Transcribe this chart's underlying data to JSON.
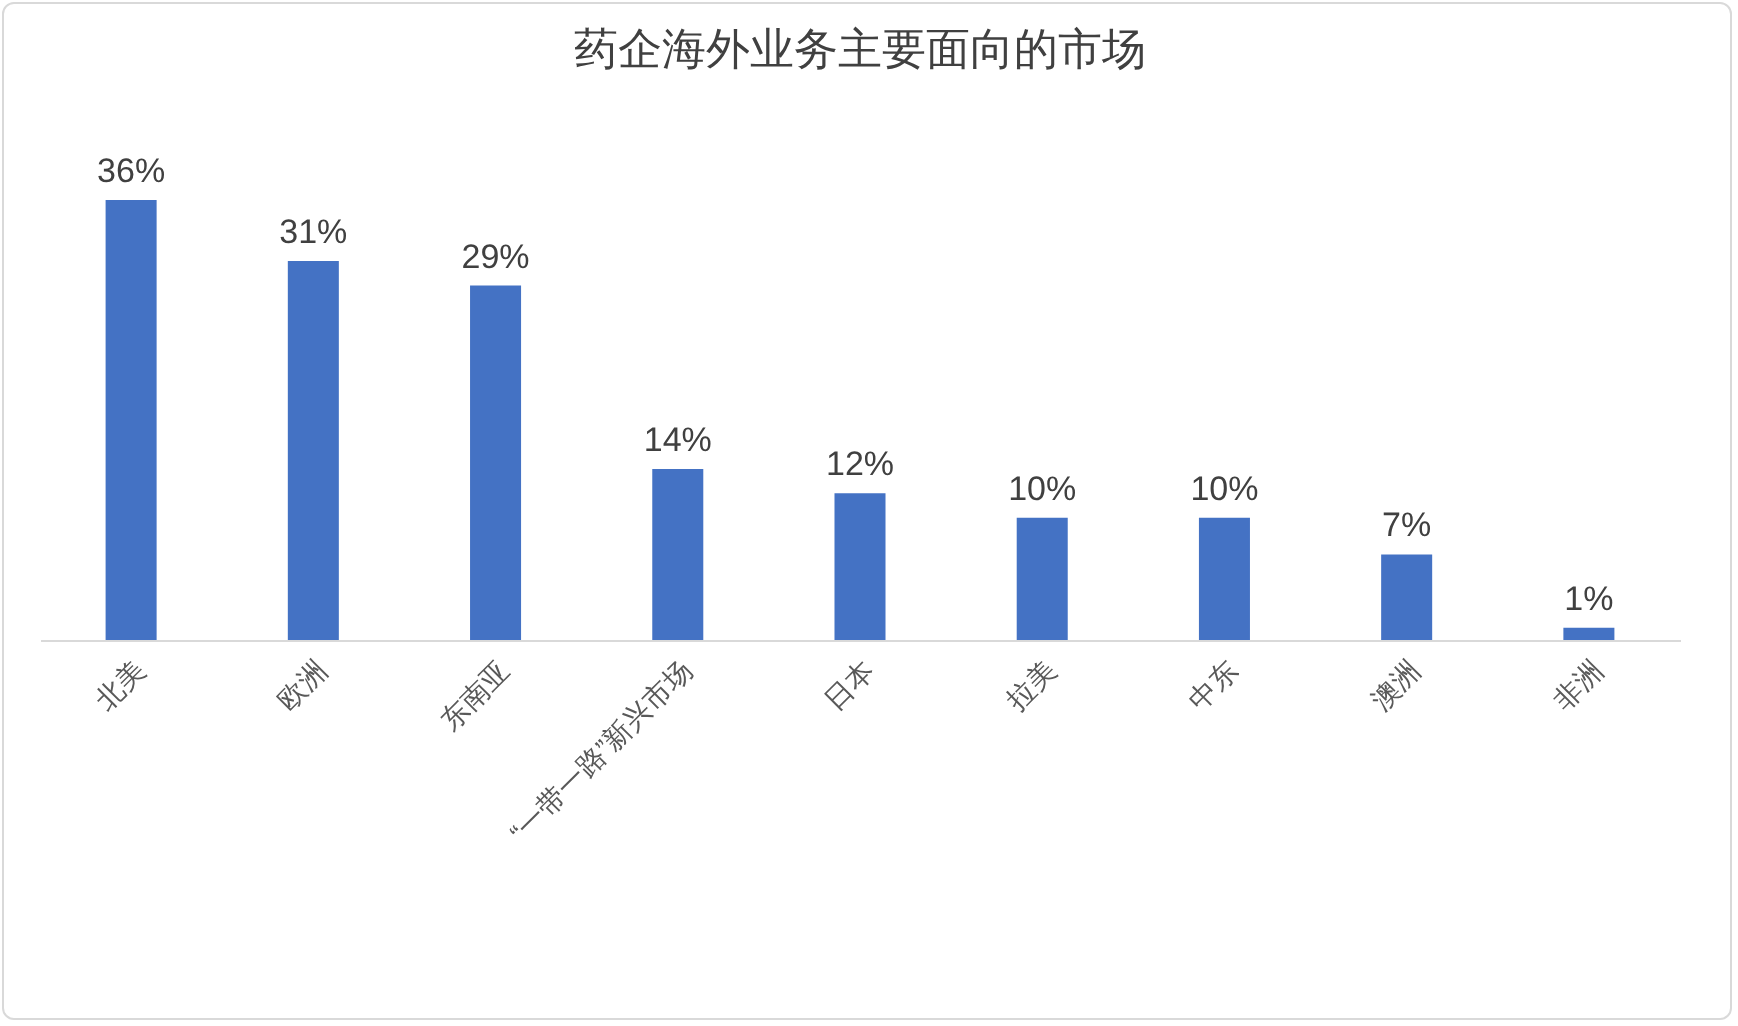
{
  "chart_data": {
    "type": "bar",
    "title": "药企海外业务主要面向的市场",
    "categories": [
      "北美",
      "欧洲",
      "东南亚",
      "“一带一路”新兴市场",
      "日本",
      "拉美",
      "中东",
      "澳洲",
      "非洲"
    ],
    "values": [
      36,
      31,
      29,
      14,
      12,
      10,
      10,
      7,
      1
    ],
    "value_labels": [
      "36%",
      "31%",
      "29%",
      "14%",
      "12%",
      "10%",
      "10%",
      "7%",
      "1%"
    ],
    "color": "#4472c4",
    "grid": false
  }
}
